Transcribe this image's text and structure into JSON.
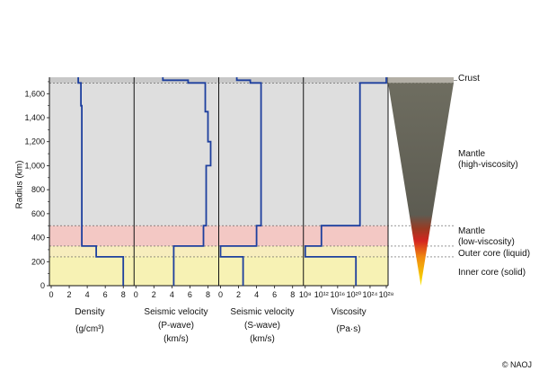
{
  "chart_data": {
    "type": "line",
    "ylabel": "Radius (km)",
    "ylim": [
      0,
      1737
    ],
    "y_ticks": [
      "0",
      "200",
      "400",
      "600",
      "800",
      "1,000",
      "1,200",
      "1,400",
      "1,600"
    ],
    "y_tick_values": [
      0,
      200,
      400,
      600,
      800,
      1000,
      1200,
      1400,
      1600
    ],
    "layers": [
      {
        "name": "Inner core (solid)",
        "r0": 0,
        "r1": 240,
        "color": "#f7f2b4"
      },
      {
        "name": "Outer core (liquid)",
        "r0": 240,
        "r1": 330,
        "color": "#f7edbd"
      },
      {
        "name": "Mantle (low-viscosity)",
        "r0": 330,
        "r1": 500,
        "color": "#f3c8c4"
      },
      {
        "name": "Mantle (high-viscosity)",
        "r0": 500,
        "r1": 1690,
        "color": "#dedede"
      },
      {
        "name": "Crust",
        "r0": 1690,
        "r1": 1737,
        "color": "#c8c8c8"
      }
    ],
    "boundaries": [
      240,
      330,
      500,
      1690
    ],
    "panels": [
      {
        "title": "Density",
        "unit": "(g/cm³)",
        "scale": "linear",
        "xlim": [
          0,
          9
        ],
        "ticks": [
          "0",
          "2",
          "4",
          "6",
          "8"
        ],
        "tick_values": [
          0,
          2,
          4,
          6,
          8
        ],
        "profile": [
          [
            0,
            8.0
          ],
          [
            240,
            8.0
          ],
          [
            240,
            5.0
          ],
          [
            330,
            5.0
          ],
          [
            330,
            3.4
          ],
          [
            1500,
            3.4
          ],
          [
            1500,
            3.3
          ],
          [
            1690,
            3.3
          ],
          [
            1690,
            3.0
          ],
          [
            1737,
            3.0
          ]
        ]
      },
      {
        "title": "Seismic velocity",
        "subtitle": "(P-wave)",
        "unit": "(km/s)",
        "scale": "linear",
        "xlim": [
          0,
          9
        ],
        "ticks": [
          "0",
          "2",
          "4",
          "6",
          "8"
        ],
        "tick_values": [
          0,
          2,
          4,
          6,
          8
        ],
        "profile": [
          [
            0,
            4.2
          ],
          [
            330,
            4.2
          ],
          [
            330,
            7.5
          ],
          [
            500,
            7.5
          ],
          [
            500,
            7.8
          ],
          [
            1000,
            7.8
          ],
          [
            1000,
            8.3
          ],
          [
            1200,
            8.3
          ],
          [
            1200,
            8.0
          ],
          [
            1450,
            8.0
          ],
          [
            1450,
            7.7
          ],
          [
            1690,
            7.7
          ],
          [
            1690,
            5.8
          ],
          [
            1712,
            5.8
          ],
          [
            1712,
            3.0
          ],
          [
            1737,
            3.0
          ]
        ]
      },
      {
        "title": "Seismic velocity",
        "subtitle": "(S-wave)",
        "unit": "(km/s)",
        "scale": "linear",
        "xlim": [
          0,
          9
        ],
        "ticks": [
          "0",
          "2",
          "4",
          "6",
          "8"
        ],
        "tick_values": [
          0,
          2,
          4,
          6,
          8
        ],
        "profile": [
          [
            0,
            2.5
          ],
          [
            240,
            2.5
          ],
          [
            240,
            0
          ],
          [
            330,
            0
          ],
          [
            330,
            4.0
          ],
          [
            500,
            4.0
          ],
          [
            500,
            4.5
          ],
          [
            1690,
            4.5
          ],
          [
            1690,
            3.3
          ],
          [
            1712,
            3.3
          ],
          [
            1712,
            1.8
          ],
          [
            1737,
            1.8
          ]
        ]
      },
      {
        "title": "Viscosity",
        "unit": "(Pa·s)",
        "scale": "log",
        "xlim": [
          8,
          28
        ],
        "ticks": [
          "10⁸",
          "10¹²",
          "10¹⁶",
          "10²⁰",
          "10²⁴",
          "10²⁸"
        ],
        "tick_values": [
          8,
          12,
          16,
          20,
          24,
          28
        ],
        "profile": [
          [
            0,
            20.5
          ],
          [
            240,
            20.5
          ],
          [
            240,
            8
          ],
          [
            330,
            8
          ],
          [
            330,
            12
          ],
          [
            500,
            12
          ],
          [
            500,
            21.5
          ],
          [
            1690,
            21.5
          ],
          [
            1690,
            28
          ],
          [
            1737,
            28
          ]
        ]
      }
    ],
    "series_color": "#1d3f9e",
    "annotations": [
      {
        "text": "Crust",
        "r": 1737
      },
      {
        "text": "Mantle\n(high-viscosity)",
        "r": 1050
      },
      {
        "text": "Mantle\n(low-viscosity)",
        "r": 420
      },
      {
        "text": "Outer core (liquid)",
        "r": 285
      },
      {
        "text": "Inner core (solid)",
        "r": 110
      }
    ]
  },
  "credit": "© NAOJ"
}
